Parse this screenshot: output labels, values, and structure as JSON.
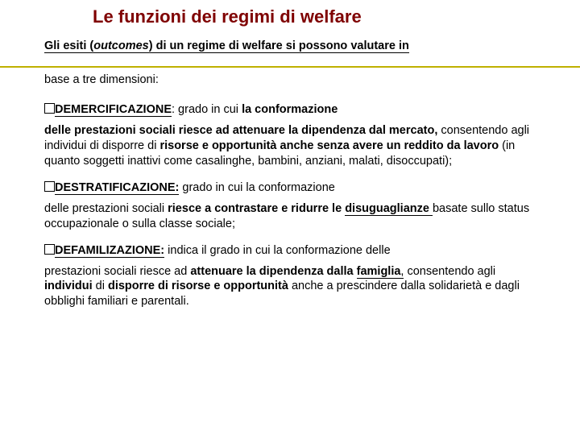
{
  "colors": {
    "title": "#7f0000",
    "rule": "#bfb000",
    "text": "#000000",
    "background": "#ffffff"
  },
  "typography": {
    "title_fontsize": 22,
    "body_fontsize": 14.5,
    "font_family": "Arial"
  },
  "title": "Le funzioni dei regimi di welfare",
  "intro_part1": "Gli esiti (",
  "intro_italic": "outcomes",
  "intro_part2": ") di un regime di welfare si possono valutare in",
  "intro_part3": "base a tre dimensioni:",
  "sections": [
    {
      "term": "DEMERCIFICAZIONE",
      "head_rest": ":  grado in cui ",
      "head_bold": "la conformazione",
      "body_html": "<b>delle prestazioni sociali riesce ad attenuare la dipendenza dal mercato, </b>consentendo agli individui di disporre di <b>risorse e opportunità anche senza avere un reddito da lavoro </b>(in quanto soggetti inattivi come casalinghe, bambini, anziani, malati, disoccupati);"
    },
    {
      "term": "DESTRATIFICAZIONE:",
      "head_rest": " grado in cui la conformazione",
      "head_bold": "",
      "body_html": "delle prestazioni sociali <b>riesce a contrastare e ridurre le <span class=\"ul\">disuguaglianze</span></b><span class=\"ul\"> </span>basate sullo status occupazionale o sulla classe sociale;"
    },
    {
      "term": "DEFAMILIZAZIONE:",
      "head_rest": " indica il grado in cui la conformazione delle",
      "head_bold": "",
      "body_html": "prestazioni sociali riesce ad <b>attenuare la dipendenza dalla <span class=\"ul\">famiglia</span></b><span class=\"ul\">,</span> consentendo agli <b>individui </b>di <b>disporre di risorse e opportunità</b> anche a prescindere dalla solidarietà e dagli obblighi familiari e parentali."
    }
  ]
}
